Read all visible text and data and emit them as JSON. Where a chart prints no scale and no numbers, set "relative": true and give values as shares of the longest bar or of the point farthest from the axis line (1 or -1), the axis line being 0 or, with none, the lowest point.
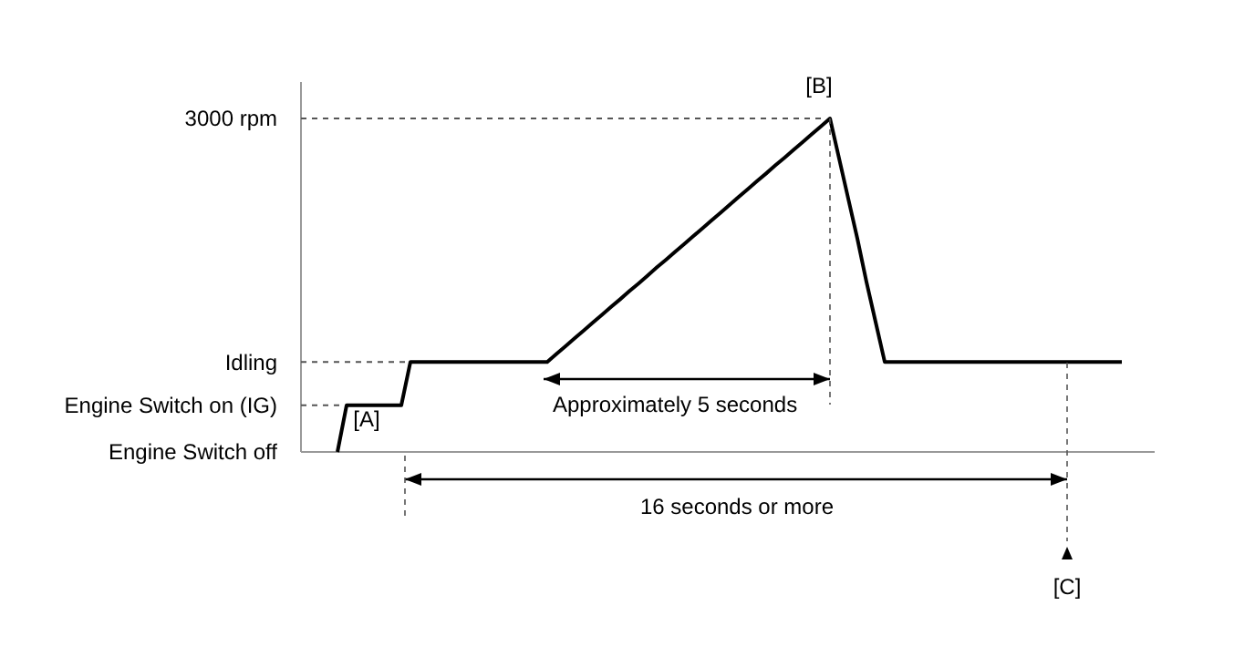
{
  "chart_data": {
    "type": "line",
    "relative": true,
    "categories": [
      null,
      null,
      null,
      null,
      null,
      null,
      null,
      null,
      null,
      null,
      null,
      null,
      null,
      null,
      null,
      null,
      null,
      null,
      null,
      null,
      null,
      null,
      null,
      null,
      null,
      null,
      null,
      null,
      null,
      null,
      null,
      null,
      null,
      null,
      null,
      null,
      null,
      null,
      null,
      null,
      null,
      null,
      null,
      null,
      null,
      null,
      null,
      null,
      null,
      null,
      null,
      null,
      null,
      null,
      null,
      null,
      null,
      null,
      null,
      null,
      null,
      null,
      null,
      null,
      null,
      null,
      null,
      null,
      null,
      null,
      null,
      null,
      null,
      null,
      null,
      null,
      null,
      null,
      null,
      null,
      null,
      null,
      null,
      null,
      null,
      null,
      null,
      null,
      null,
      null,
      null
    ],
    "series": [
      {
        "color": "#000000",
        "values": [
          null,
          null,
          null,
          null,
          0,
          0.14,
          0.14,
          0.14,
          0.14,
          0.14,
          0.14,
          0.14,
          0.27,
          0.27,
          0.27,
          0.27,
          0.27,
          0.27,
          0.27,
          0.27,
          0.27,
          0.27,
          0.27,
          0.27,
          0.27,
          0.27,
          0.27,
          0.27,
          0.294,
          0.317,
          0.341,
          0.364,
          0.388,
          0.411,
          0.435,
          0.458,
          0.482,
          0.505,
          0.529,
          0.553,
          0.576,
          0.6,
          0.623,
          0.647,
          0.67,
          0.694,
          0.717,
          0.741,
          0.765,
          0.788,
          0.812,
          0.835,
          0.859,
          0.882,
          0.906,
          0.929,
          0.953,
          0.976,
          1,
          0.88,
          0.76,
          0.64,
          0.51,
          0.39,
          0.27,
          0.27,
          0.27,
          0.27,
          0.27,
          0.27,
          0.27,
          0.27,
          0.27,
          0.27,
          0.27,
          0.27,
          0.27,
          0.27,
          0.27,
          0.27,
          0.27,
          0.27,
          0.27,
          0.27,
          0.27,
          0.27,
          0.27,
          0.27,
          0.27,
          0.27,
          0.27
        ]
      }
    ],
    "line_style": "solid",
    "ref_lines": [
      {
        "axis": "y",
        "value": 0,
        "label": "Engine Switch off",
        "line_style": "solid",
        "color": "#999999"
      },
      {
        "axis": "y",
        "value": 0.14,
        "label": "Engine Switch on (IG)",
        "line_style": "dashed"
      },
      {
        "axis": "y",
        "value": 0.27,
        "label": "Idling",
        "line_style": "dashed"
      },
      {
        "axis": "y",
        "value": 1,
        "label": "3000 rpm",
        "line_style": "dashed"
      }
    ],
    "annotations": [
      "[A]",
      "[B]",
      "[C]",
      "Approximately 5 seconds",
      "16 seconds or more"
    ]
  }
}
